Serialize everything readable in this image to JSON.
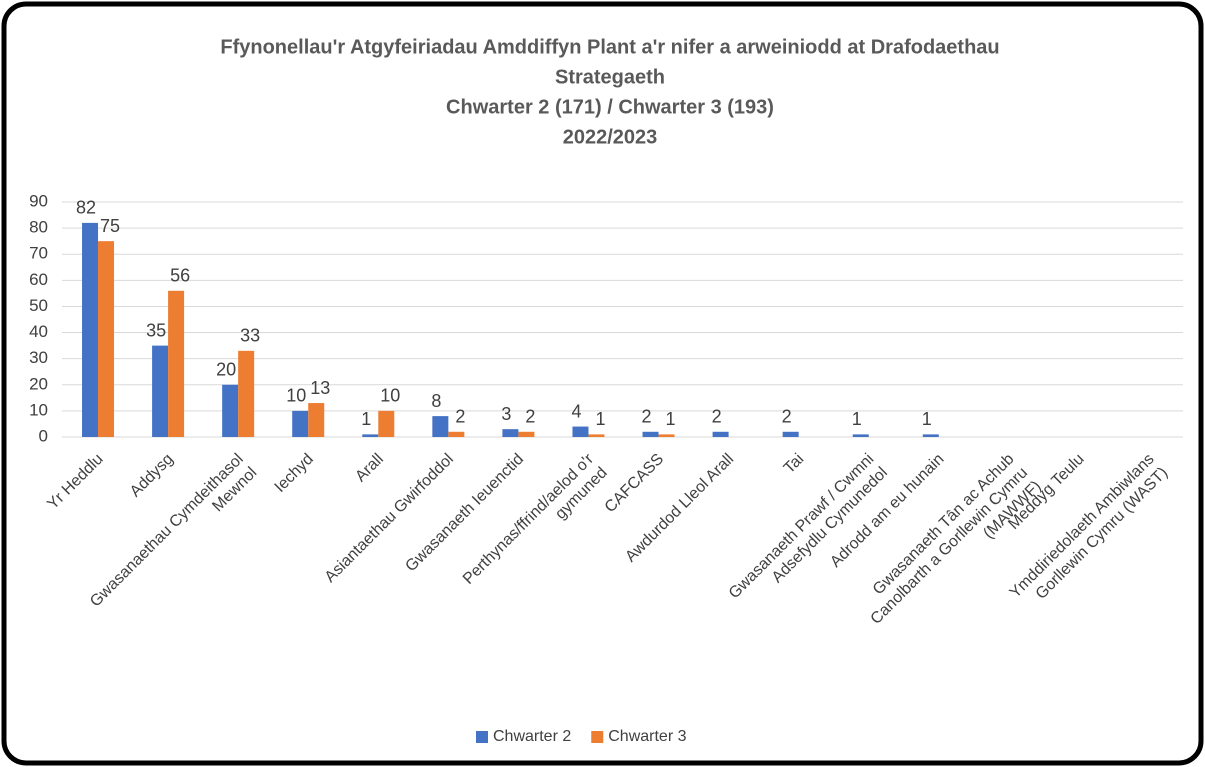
{
  "chart_data": {
    "type": "bar",
    "title": [
      "Ffynonellau'r Atgyfeiriadau Amddiffyn Plant a'r nifer a arweiniodd at Drafodaethau",
      "Strategaeth"
    ],
    "subtitle": [
      "Chwarter 2  (171) / Chwarter 3 (193)",
      "2022/2023"
    ],
    "categories": [
      "Yr Heddlu",
      "Addysg",
      "Gwasanaethau Cymdeithasol Mewnol",
      "Iechyd",
      "Arall",
      "Asiantaethau Gwirfoddol",
      "Gwasanaeth Ieuenctid",
      "Perthynas/ffrind/aelod o'r gymuned",
      "CAFCASS",
      "Awdurdod Lleol Arall",
      "Tai",
      "Gwasanaeth Prawf / Cwmni Adsefydlu Cymunedol",
      "Adrodd am eu hunain",
      "Gwasanaeth Tân ac Achub Canolbarth a Gorllewin Cymru (MAWWF)",
      "Meddyg Teulu",
      "Ymddiriedolaeth Ambiwlans Gorllewin Cymru (WAST)"
    ],
    "series": [
      {
        "name": "Chwarter 2",
        "color": "#4472c4",
        "values": [
          82,
          35,
          20,
          10,
          1,
          8,
          3,
          4,
          2,
          2,
          2,
          1,
          1,
          null,
          null,
          null
        ]
      },
      {
        "name": "Chwarter 3",
        "color": "#ed7d31",
        "values": [
          75,
          56,
          33,
          13,
          10,
          2,
          2,
          1,
          1,
          null,
          null,
          null,
          null,
          null,
          null,
          null
        ]
      }
    ],
    "ylim": [
      0,
      90
    ],
    "yticks": [
      0,
      10,
      20,
      30,
      40,
      50,
      60,
      70,
      80,
      90
    ],
    "grid": true,
    "legend": "bottom"
  }
}
